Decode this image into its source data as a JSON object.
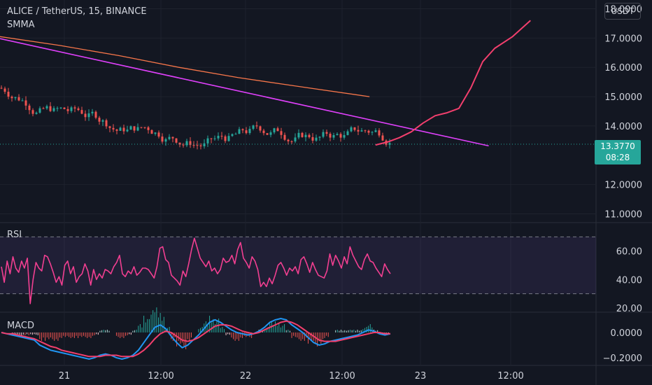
{
  "header": {
    "symbol_line": "ALICE / TetherUS, 15, BINANCE",
    "indicator_name": "SMMA"
  },
  "currency_badge": "USDT",
  "price_badge": {
    "price": "13.3770",
    "countdown": "08:28"
  },
  "colors": {
    "background": "#131722",
    "grid": "#1e222d",
    "up_candle": "#26a69a",
    "down_candle": "#ef5350",
    "smma": "#f7764a",
    "trendline": "#e040fb",
    "projection": "#f23f6d",
    "rsi_line": "#f23f91",
    "rsi_band": "#7e57c2",
    "macd_line": "#2196f3",
    "signal_line": "#f23f6d"
  },
  "chart_data": [
    {
      "type": "candlestick",
      "title": "ALICE / TetherUS, 15, BINANCE",
      "x_ticks": [
        "21",
        "12:00",
        "22",
        "12:00",
        "23",
        "12:00"
      ],
      "y_ticks": [
        "18.0000",
        "17.0000",
        "16.0000",
        "15.0000",
        "14.0000",
        "12.0000",
        "11.0000"
      ],
      "ylim": [
        10.7,
        18.3
      ],
      "last_price": 13.377,
      "series": [
        {
          "name": "SMMA",
          "points": [
            [
              0,
              17.05
            ],
            [
              0.1,
              16.75
            ],
            [
              0.2,
              16.4
            ],
            [
              0.3,
              16.0
            ],
            [
              0.4,
              15.65
            ],
            [
              0.5,
              15.35
            ],
            [
              0.62,
              15.0
            ]
          ]
        },
        {
          "name": "trend line",
          "points": [
            [
              0,
              16.98
            ],
            [
              0.82,
              13.32
            ]
          ]
        },
        {
          "name": "projected path",
          "points": [
            [
              0.63,
              13.35
            ],
            [
              0.65,
              13.45
            ],
            [
              0.67,
              13.6
            ],
            [
              0.69,
              13.8
            ],
            [
              0.71,
              14.1
            ],
            [
              0.73,
              14.35
            ],
            [
              0.75,
              14.45
            ],
            [
              0.77,
              14.6
            ],
            [
              0.79,
              15.3
            ],
            [
              0.81,
              16.2
            ],
            [
              0.83,
              16.65
            ],
            [
              0.86,
              17.05
            ],
            [
              0.89,
              17.6
            ]
          ]
        }
      ]
    },
    {
      "type": "line",
      "title": "RSI",
      "y_ticks": [
        "60.00",
        "40.00",
        "20.00"
      ],
      "ylim": [
        17,
        80
      ],
      "bands": [
        30,
        70
      ],
      "series": [
        {
          "name": "RSI",
          "values": [
            49,
            38,
            53,
            44,
            56,
            48,
            45,
            53,
            48,
            55,
            23,
            40,
            52,
            48,
            46,
            57,
            56,
            51,
            45,
            38,
            42,
            36,
            50,
            53,
            44,
            49,
            38,
            42,
            44,
            51,
            46,
            36,
            47,
            40,
            44,
            41,
            47,
            46,
            44,
            49,
            52,
            57,
            44,
            42,
            46,
            44,
            49,
            43,
            45,
            48,
            48,
            47,
            44,
            41,
            49,
            62,
            63,
            54,
            52,
            43,
            41,
            39,
            36,
            46,
            42,
            51,
            61,
            69,
            62,
            55,
            52,
            49,
            53,
            46,
            48,
            44,
            47,
            55,
            52,
            53,
            57,
            51,
            61,
            66,
            55,
            52,
            48,
            56,
            53,
            47,
            35,
            38,
            35,
            41,
            37,
            43,
            50,
            52,
            48,
            43,
            48,
            46,
            49,
            44,
            54,
            56,
            51,
            45,
            52,
            47,
            43,
            42,
            41,
            46,
            58,
            50,
            57,
            53,
            48,
            56,
            51,
            63,
            57,
            53,
            49,
            47,
            54,
            58,
            53,
            52,
            48,
            45,
            42,
            51,
            47,
            44
          ]
        }
      ]
    },
    {
      "type": "macd",
      "title": "MACD",
      "y_ticks": [
        "0.0000",
        "−0.2000"
      ],
      "ylim": [
        -0.26,
        0.16
      ],
      "series": [
        {
          "name": "MACD",
          "values": [
            0.0,
            -0.01,
            -0.02,
            -0.03,
            -0.04,
            -0.05,
            -0.06,
            -0.1,
            -0.12,
            -0.14,
            -0.15,
            -0.16,
            -0.17,
            -0.18,
            -0.19,
            -0.2,
            -0.21,
            -0.2,
            -0.18,
            -0.17,
            -0.18,
            -0.2,
            -0.21,
            -0.2,
            -0.18,
            -0.14,
            -0.08,
            -0.02,
            0.04,
            0.06,
            0.03,
            -0.03,
            -0.08,
            -0.12,
            -0.1,
            -0.06,
            -0.02,
            0.03,
            0.08,
            0.1,
            0.08,
            0.05,
            0.02,
            0.0,
            -0.01,
            -0.02,
            -0.01,
            0.01,
            0.04,
            0.08,
            0.1,
            0.11,
            0.1,
            0.06,
            0.03,
            0.0,
            -0.04,
            -0.08,
            -0.1,
            -0.09,
            -0.07,
            -0.06,
            -0.05,
            -0.04,
            -0.03,
            -0.02,
            0.0,
            0.02,
            0.01,
            -0.01,
            -0.02,
            -0.01
          ]
        },
        {
          "name": "Signal",
          "values": [
            0.0,
            -0.01,
            -0.01,
            -0.02,
            -0.03,
            -0.04,
            -0.05,
            -0.07,
            -0.09,
            -0.11,
            -0.12,
            -0.14,
            -0.15,
            -0.16,
            -0.17,
            -0.18,
            -0.19,
            -0.19,
            -0.19,
            -0.18,
            -0.18,
            -0.18,
            -0.19,
            -0.19,
            -0.19,
            -0.17,
            -0.14,
            -0.1,
            -0.05,
            -0.01,
            0.01,
            -0.0,
            -0.03,
            -0.06,
            -0.07,
            -0.06,
            -0.04,
            -0.01,
            0.02,
            0.05,
            0.06,
            0.06,
            0.05,
            0.03,
            0.01,
            -0.0,
            -0.01,
            -0.0,
            0.02,
            0.04,
            0.06,
            0.08,
            0.09,
            0.08,
            0.06,
            0.03,
            0.0,
            -0.03,
            -0.06,
            -0.07,
            -0.07,
            -0.07,
            -0.06,
            -0.05,
            -0.04,
            -0.03,
            -0.02,
            -0.01,
            -0.0,
            -0.0,
            -0.01,
            -0.01
          ]
        }
      ]
    }
  ]
}
